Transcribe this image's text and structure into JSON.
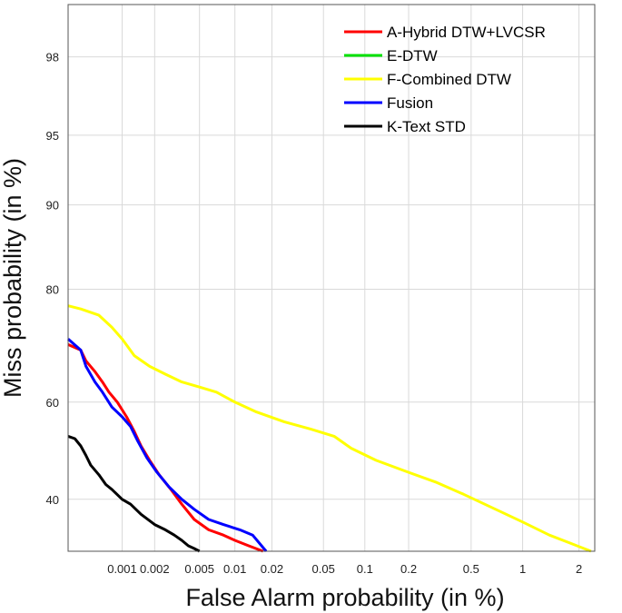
{
  "chart_data": {
    "type": "line",
    "title": "",
    "xlabel": "False Alarm probability (in %)",
    "ylabel": "Miss probability (in %)",
    "x_scale": "normal-deviate (DET)",
    "y_scale": "normal-deviate (DET)",
    "xlim": [
      0.0003,
      2.4
    ],
    "ylim": [
      30,
      99
    ],
    "grid": true,
    "legend_position": "top-right",
    "x_ticks": [
      {
        "value": 0.001,
        "label": "0.001"
      },
      {
        "value": 0.002,
        "label": "0.002"
      },
      {
        "value": 0.005,
        "label": "0.005"
      },
      {
        "value": 0.01,
        "label": "0.01"
      },
      {
        "value": 0.02,
        "label": "0.02"
      },
      {
        "value": 0.05,
        "label": "0.05"
      },
      {
        "value": 0.1,
        "label": "0.1"
      },
      {
        "value": 0.2,
        "label": "0.2"
      },
      {
        "value": 0.5,
        "label": "0.5"
      },
      {
        "value": 1,
        "label": "1"
      },
      {
        "value": 2,
        "label": "2"
      }
    ],
    "y_ticks": [
      {
        "value": 40,
        "label": "40"
      },
      {
        "value": 60,
        "label": "60"
      },
      {
        "value": 80,
        "label": "80"
      },
      {
        "value": 90,
        "label": "90"
      },
      {
        "value": 95,
        "label": "95"
      },
      {
        "value": 98,
        "label": "98"
      }
    ],
    "series": [
      {
        "name": "A-Hybrid DTW+LVCSR",
        "color": "#ff0000",
        "points": [
          [
            0.0003,
            71
          ],
          [
            0.0004,
            70
          ],
          [
            0.00045,
            68
          ],
          [
            0.00055,
            66
          ],
          [
            0.00065,
            64
          ],
          [
            0.00075,
            62
          ],
          [
            0.0009,
            60
          ],
          [
            0.0011,
            57
          ],
          [
            0.0013,
            54
          ],
          [
            0.0015,
            51
          ],
          [
            0.0018,
            48
          ],
          [
            0.0022,
            45
          ],
          [
            0.0028,
            42
          ],
          [
            0.0035,
            39
          ],
          [
            0.0045,
            36
          ],
          [
            0.006,
            34
          ],
          [
            0.008,
            33
          ],
          [
            0.01,
            32
          ],
          [
            0.013,
            31
          ],
          [
            0.017,
            30
          ]
        ]
      },
      {
        "name": "E-DTW",
        "color": "#00e000",
        "points": []
      },
      {
        "name": "F-Combined DTW",
        "color": "#ffff00",
        "points": [
          [
            0.0003,
            77.5
          ],
          [
            0.0004,
            77
          ],
          [
            0.0006,
            76
          ],
          [
            0.0008,
            74
          ],
          [
            0.001,
            72
          ],
          [
            0.0013,
            69
          ],
          [
            0.0018,
            67
          ],
          [
            0.0025,
            65.5
          ],
          [
            0.0035,
            64
          ],
          [
            0.005,
            63
          ],
          [
            0.007,
            62
          ],
          [
            0.01,
            60
          ],
          [
            0.015,
            58
          ],
          [
            0.025,
            56
          ],
          [
            0.04,
            54.5
          ],
          [
            0.06,
            53
          ],
          [
            0.08,
            50.5
          ],
          [
            0.12,
            48
          ],
          [
            0.2,
            45.5
          ],
          [
            0.3,
            43.5
          ],
          [
            0.45,
            41
          ],
          [
            0.7,
            38
          ],
          [
            1.0,
            35.5
          ],
          [
            1.4,
            33
          ],
          [
            1.8,
            31.5
          ],
          [
            2.3,
            30
          ]
        ]
      },
      {
        "name": "Fusion",
        "color": "#0000ff",
        "points": [
          [
            0.0003,
            72
          ],
          [
            0.0004,
            70
          ],
          [
            0.00045,
            67
          ],
          [
            0.00055,
            64
          ],
          [
            0.00065,
            62
          ],
          [
            0.0008,
            59
          ],
          [
            0.001,
            57
          ],
          [
            0.0012,
            55
          ],
          [
            0.0014,
            52
          ],
          [
            0.0017,
            48.5
          ],
          [
            0.0021,
            45.5
          ],
          [
            0.0027,
            42.5
          ],
          [
            0.0035,
            40
          ],
          [
            0.0045,
            38
          ],
          [
            0.006,
            36
          ],
          [
            0.008,
            35
          ],
          [
            0.011,
            34
          ],
          [
            0.014,
            33
          ],
          [
            0.018,
            30
          ]
        ]
      },
      {
        "name": "K-Text STD",
        "color": "#000000",
        "points": [
          [
            0.0003,
            53
          ],
          [
            0.00035,
            52.5
          ],
          [
            0.0004,
            51
          ],
          [
            0.00045,
            49
          ],
          [
            0.0005,
            47
          ],
          [
            0.0006,
            45
          ],
          [
            0.0007,
            43
          ],
          [
            0.0008,
            42
          ],
          [
            0.001,
            40
          ],
          [
            0.0012,
            39
          ],
          [
            0.0015,
            37
          ],
          [
            0.002,
            35
          ],
          [
            0.0025,
            34
          ],
          [
            0.003,
            33
          ],
          [
            0.0035,
            32
          ],
          [
            0.004,
            31
          ],
          [
            0.0045,
            30.5
          ],
          [
            0.005,
            30
          ]
        ]
      }
    ]
  }
}
